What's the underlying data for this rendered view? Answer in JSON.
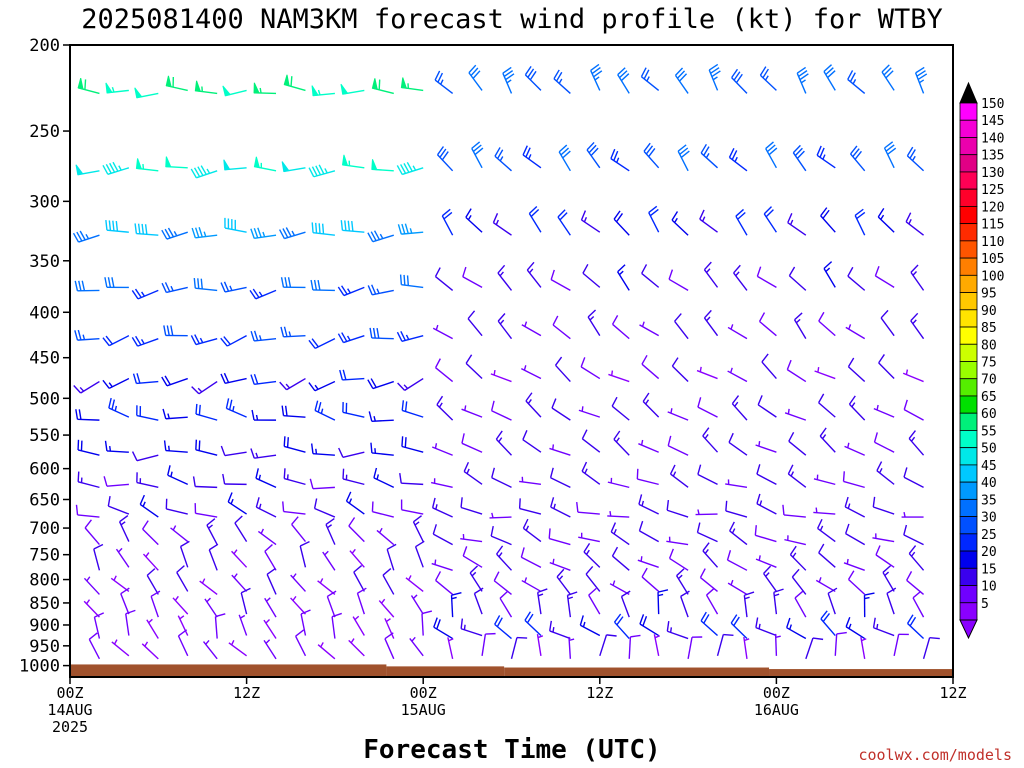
{
  "chart_data": {
    "type": "wind-barb-time-height",
    "title": "2025081400 NAM3KM forecast wind profile (kt) for WTBY",
    "xlabel": "Forecast Time (UTC)",
    "credit": "coolwx.com/models",
    "units": "kt",
    "y_axis": {
      "quantity": "pressure (hPa)",
      "scale": "log",
      "reversed": true,
      "range": [
        200,
        1030
      ],
      "ticks": [
        200,
        250,
        300,
        350,
        400,
        450,
        500,
        550,
        600,
        650,
        700,
        750,
        800,
        850,
        900,
        950,
        1000
      ]
    },
    "x_axis": {
      "range_hours": [
        0,
        60
      ],
      "ticks": [
        {
          "hour": 0,
          "line1": "00Z",
          "line2": "14AUG",
          "line3": "2025"
        },
        {
          "hour": 12,
          "line1": "12Z",
          "line2": "",
          "line3": ""
        },
        {
          "hour": 24,
          "line1": "00Z",
          "line2": "15AUG",
          "line3": ""
        },
        {
          "hour": 36,
          "line1": "12Z",
          "line2": "",
          "line3": ""
        },
        {
          "hour": 48,
          "line1": "00Z",
          "line2": "16AUG",
          "line3": ""
        },
        {
          "hour": 60,
          "line1": "12Z",
          "line2": "",
          "line3": ""
        }
      ]
    },
    "levels": [
      225,
      275,
      325,
      375,
      425,
      475,
      525,
      575,
      625,
      675,
      725,
      775,
      825,
      875,
      925,
      975
    ],
    "hours": [
      0,
      2,
      4,
      6,
      8,
      10,
      12,
      14,
      16,
      18,
      20,
      22,
      24,
      26,
      28,
      30,
      32,
      34,
      36,
      38,
      40,
      42,
      44,
      46,
      48,
      50,
      52,
      54,
      56,
      58,
      60
    ],
    "wind_model": {
      "description": "approximate wind speed (kt) and direction-from (deg) per level, interpolated over time; early=hours 0-24, late=hours 26-60",
      "speed_early": [
        55,
        50,
        38,
        28,
        24,
        18,
        20,
        15,
        13,
        12,
        10,
        8,
        8,
        7,
        6,
        5
      ],
      "speed_late": [
        30,
        28,
        18,
        12,
        10,
        8,
        10,
        10,
        10,
        10,
        10,
        10,
        10,
        12,
        18,
        8
      ],
      "dir_early": [
        270,
        265,
        265,
        260,
        255,
        250,
        280,
        270,
        280,
        290,
        320,
        330,
        320,
        330,
        340,
        320
      ],
      "dir_late": [
        320,
        315,
        315,
        310,
        310,
        300,
        300,
        300,
        290,
        280,
        290,
        300,
        310,
        340,
        300,
        360
      ]
    },
    "terrain": {
      "color": "#a0522d",
      "segments": [
        {
          "from_hour": 0,
          "to_hour": 21.5,
          "pressure": 997
        },
        {
          "from_hour": 21.5,
          "to_hour": 29.5,
          "pressure": 1002
        },
        {
          "from_hour": 29.5,
          "to_hour": 47.5,
          "pressure": 1005
        },
        {
          "from_hour": 47.5,
          "to_hour": 60,
          "pressure": 1009
        }
      ]
    },
    "colorbar": {
      "labels": [
        "150",
        "145",
        "140",
        "135",
        "130",
        "125",
        "120",
        "115",
        "110",
        "105",
        "100",
        "95",
        "90",
        "85",
        "80",
        "75",
        "70",
        "65",
        "60",
        "55",
        "50",
        "45",
        "40",
        "35",
        "30",
        "25",
        "20",
        "15",
        "10",
        "5"
      ],
      "colors": [
        "#ff00ff",
        "#f500d6",
        "#eb00ad",
        "#e10085",
        "#ff0055",
        "#ff002a",
        "#ff0000",
        "#ff2b00",
        "#ff5500",
        "#ff7f00",
        "#ffaa00",
        "#ffc800",
        "#ffe400",
        "#ffff00",
        "#ccff00",
        "#99ff00",
        "#55ee00",
        "#00e000",
        "#00f07a",
        "#00ffc8",
        "#00e8e8",
        "#00c8ff",
        "#009aff",
        "#0070ff",
        "#0050ff",
        "#0028ff",
        "#0000ee",
        "#3a00ee",
        "#7000ff",
        "#8a00ff"
      ],
      "bounds": [
        150,
        5
      ]
    }
  }
}
